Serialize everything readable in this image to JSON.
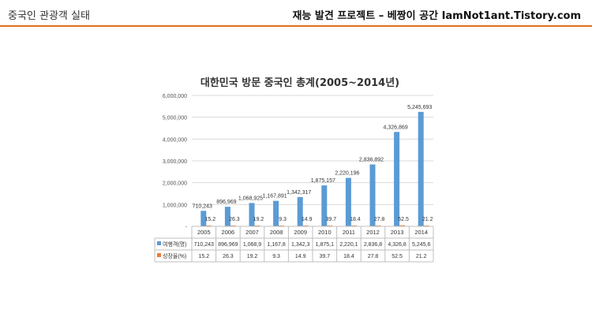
{
  "header": {
    "left_title": "중국인 관광객 실태",
    "right_title": "재능 발견 프로젝트 – 베짱이 공간 IamNot1ant.Tistory.com",
    "accent_color": "#e36c1d"
  },
  "chart_data": {
    "type": "bar",
    "title": "대한민국 방문 중국인 총계(2005~2014년)",
    "categories": [
      "2005",
      "2006",
      "2007",
      "2008",
      "2009",
      "2010",
      "2011",
      "2012",
      "2013",
      "2014"
    ],
    "ylim": [
      0,
      6000000
    ],
    "y_ticks": [
      "-",
      "1,000,000",
      "2,000,000",
      "3,000,000",
      "4,000,000",
      "5,000,000",
      "6,000,000"
    ],
    "grid": true,
    "legend": "data-table",
    "series": [
      {
        "name": "여행객(명)",
        "color": "#5b9bd5",
        "values": [
          710243,
          896969,
          1068925,
          1167891,
          1342317,
          1875157,
          2220196,
          2836892,
          4326869,
          5245693
        ],
        "data_labels": [
          "710,243",
          "896,969",
          "1,068,925",
          "1,167,891",
          "1,342,317",
          "1,875,157",
          "2,220,196",
          "2,836,892",
          "4,326,869",
          "5,245,693"
        ],
        "table_labels": [
          "710,243",
          "896,969",
          "1,068,9",
          "1,167,8",
          "1,342,3",
          "1,875,1",
          "2,220,1",
          "2,836,8",
          "4,326,8",
          "5,245,6"
        ]
      },
      {
        "name": "성장율(%)",
        "color": "#ed7d31",
        "values": [
          15.2,
          26.3,
          19.2,
          9.3,
          14.9,
          39.7,
          18.4,
          27.8,
          52.5,
          21.2
        ],
        "data_labels": [
          "15.2",
          "26.3",
          "19.2",
          "9.3",
          "14.9",
          "39.7",
          "18.4",
          "27.8",
          "52.5",
          "21.2"
        ],
        "table_labels": [
          "15.2",
          "26.3",
          "19.2",
          "9.3",
          "14.9",
          "39.7",
          "18.4",
          "27.8",
          "52.5",
          "21.2"
        ]
      }
    ]
  }
}
